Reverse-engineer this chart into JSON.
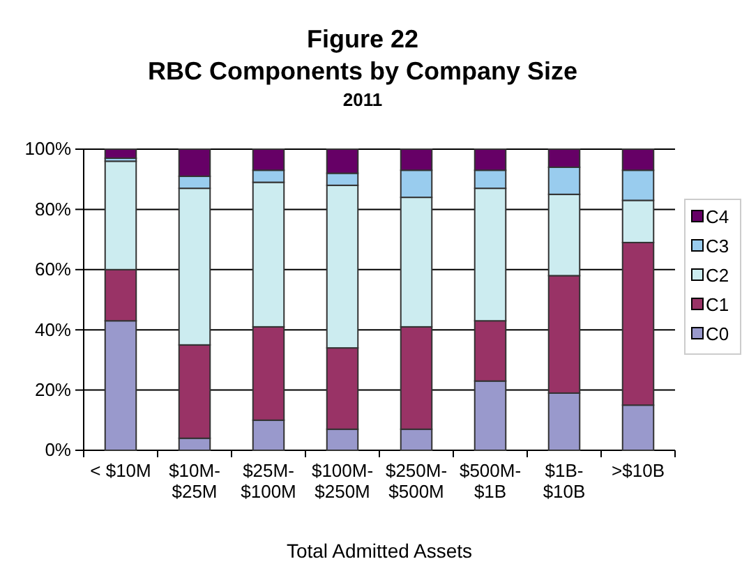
{
  "chart_data": {
    "type": "bar",
    "stacked": true,
    "title": "Figure 22\nRBC Components by Company Size",
    "subtitle": "2011",
    "xlabel": "Total Admitted Assets",
    "categories": [
      "< $10M",
      "$10M-$25M",
      "$25M-$100M",
      "$100M-$250M",
      "$250M-$500M",
      "$500M-$1B",
      "$1B-$10B",
      ">$10B"
    ],
    "series": [
      {
        "name": "C0",
        "color": "#9999cc",
        "values": [
          43,
          4,
          10,
          7,
          7,
          23,
          19,
          15
        ]
      },
      {
        "name": "C1",
        "color": "#993366",
        "values": [
          17,
          31,
          31,
          27,
          34,
          20,
          39,
          54
        ]
      },
      {
        "name": "C2",
        "color": "#ccecf0",
        "values": [
          36,
          52,
          48,
          54,
          43,
          44,
          27,
          14
        ]
      },
      {
        "name": "C3",
        "color": "#99ccee",
        "values": [
          1,
          4,
          4,
          4,
          9,
          6,
          9,
          10
        ]
      },
      {
        "name": "C4",
        "color": "#660066",
        "values": [
          3,
          9,
          7,
          8,
          7,
          7,
          6,
          7
        ]
      }
    ],
    "ylim": [
      0,
      100
    ],
    "yticks": [
      {
        "value": 0,
        "label": "0%"
      },
      {
        "value": 20,
        "label": "20%"
      },
      {
        "value": 40,
        "label": "40%"
      },
      {
        "value": 60,
        "label": "60%"
      },
      {
        "value": 80,
        "label": "80%"
      },
      {
        "value": 100,
        "label": "100%"
      }
    ],
    "grid": "y",
    "legend": "right"
  }
}
